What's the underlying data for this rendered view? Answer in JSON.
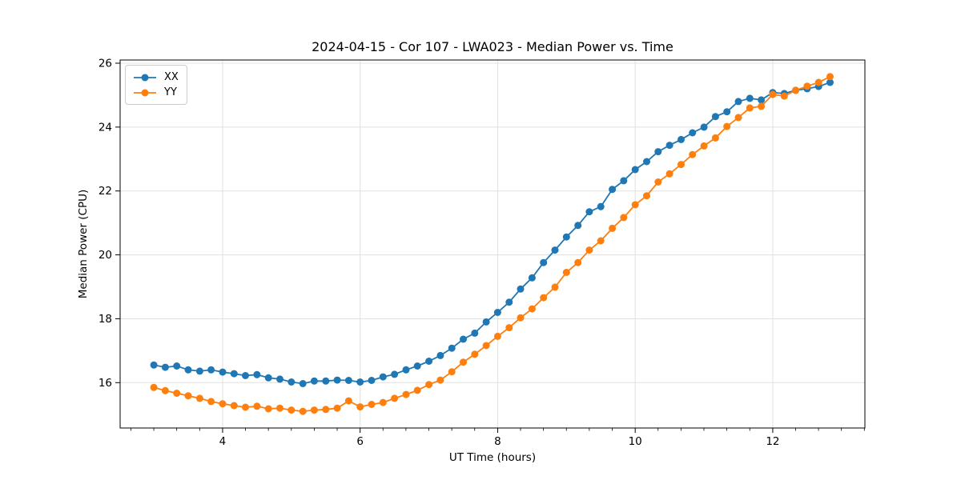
{
  "chart_data": {
    "type": "line",
    "title": "2024-04-15 - Cor 107 - LWA023 - Median Power vs. Time",
    "xlabel": "UT Time (hours)",
    "ylabel": "Median Power (CPU)",
    "xlim": [
      2.51,
      13.34
    ],
    "ylim": [
      14.58,
      26.1
    ],
    "x_ticks": [
      4,
      6,
      8,
      10,
      12
    ],
    "y_ticks": [
      16,
      18,
      20,
      22,
      24,
      26
    ],
    "x_minor_tick_step": 0.3333,
    "grid": true,
    "grid_color": "#e0e0e0",
    "frame_color": "#000000",
    "legend_position": "upper left",
    "marker": "circle",
    "x": [
      3.0,
      3.167,
      3.333,
      3.5,
      3.667,
      3.833,
      4.0,
      4.167,
      4.333,
      4.5,
      4.667,
      4.833,
      5.0,
      5.167,
      5.333,
      5.5,
      5.667,
      5.833,
      6.0,
      6.167,
      6.333,
      6.5,
      6.667,
      6.833,
      7.0,
      7.167,
      7.333,
      7.5,
      7.667,
      7.833,
      8.0,
      8.167,
      8.333,
      8.5,
      8.667,
      8.833,
      9.0,
      9.167,
      9.333,
      9.5,
      9.667,
      9.833,
      10.0,
      10.167,
      10.333,
      10.5,
      10.667,
      10.833,
      11.0,
      11.167,
      11.333,
      11.5,
      11.667,
      11.833,
      12.0,
      12.167,
      12.333,
      12.5,
      12.667,
      12.833
    ],
    "series": [
      {
        "name": "XX",
        "color": "#1f77b4",
        "values": [
          16.55,
          16.48,
          16.52,
          16.4,
          16.36,
          16.4,
          16.33,
          16.28,
          16.22,
          16.25,
          16.15,
          16.11,
          16.02,
          15.97,
          16.05,
          16.05,
          16.08,
          16.07,
          16.02,
          16.07,
          16.18,
          16.26,
          16.4,
          16.52,
          16.67,
          16.85,
          17.08,
          17.36,
          17.55,
          17.9,
          18.2,
          18.52,
          18.93,
          19.28,
          19.76,
          20.15,
          20.56,
          20.92,
          21.35,
          21.51,
          22.05,
          22.32,
          22.67,
          22.92,
          23.23,
          23.43,
          23.61,
          23.82,
          24.0,
          24.33,
          24.48,
          24.8,
          24.9,
          24.85,
          25.08,
          25.05,
          25.15,
          25.2,
          25.27,
          25.4
        ]
      },
      {
        "name": "YY",
        "color": "#ff7f0e",
        "values": [
          15.85,
          15.75,
          15.67,
          15.59,
          15.51,
          15.41,
          15.34,
          15.28,
          15.23,
          15.26,
          15.18,
          15.2,
          15.14,
          15.1,
          15.14,
          15.16,
          15.2,
          15.43,
          15.24,
          15.32,
          15.38,
          15.51,
          15.63,
          15.76,
          15.94,
          16.08,
          16.34,
          16.64,
          16.89,
          17.16,
          17.45,
          17.72,
          18.03,
          18.31,
          18.66,
          18.99,
          19.45,
          19.76,
          20.15,
          20.44,
          20.83,
          21.17,
          21.57,
          21.85,
          22.28,
          22.54,
          22.83,
          23.14,
          23.41,
          23.66,
          24.02,
          24.3,
          24.6,
          24.65,
          25.02,
          24.97,
          25.15,
          25.28,
          25.4,
          25.58
        ]
      }
    ]
  }
}
